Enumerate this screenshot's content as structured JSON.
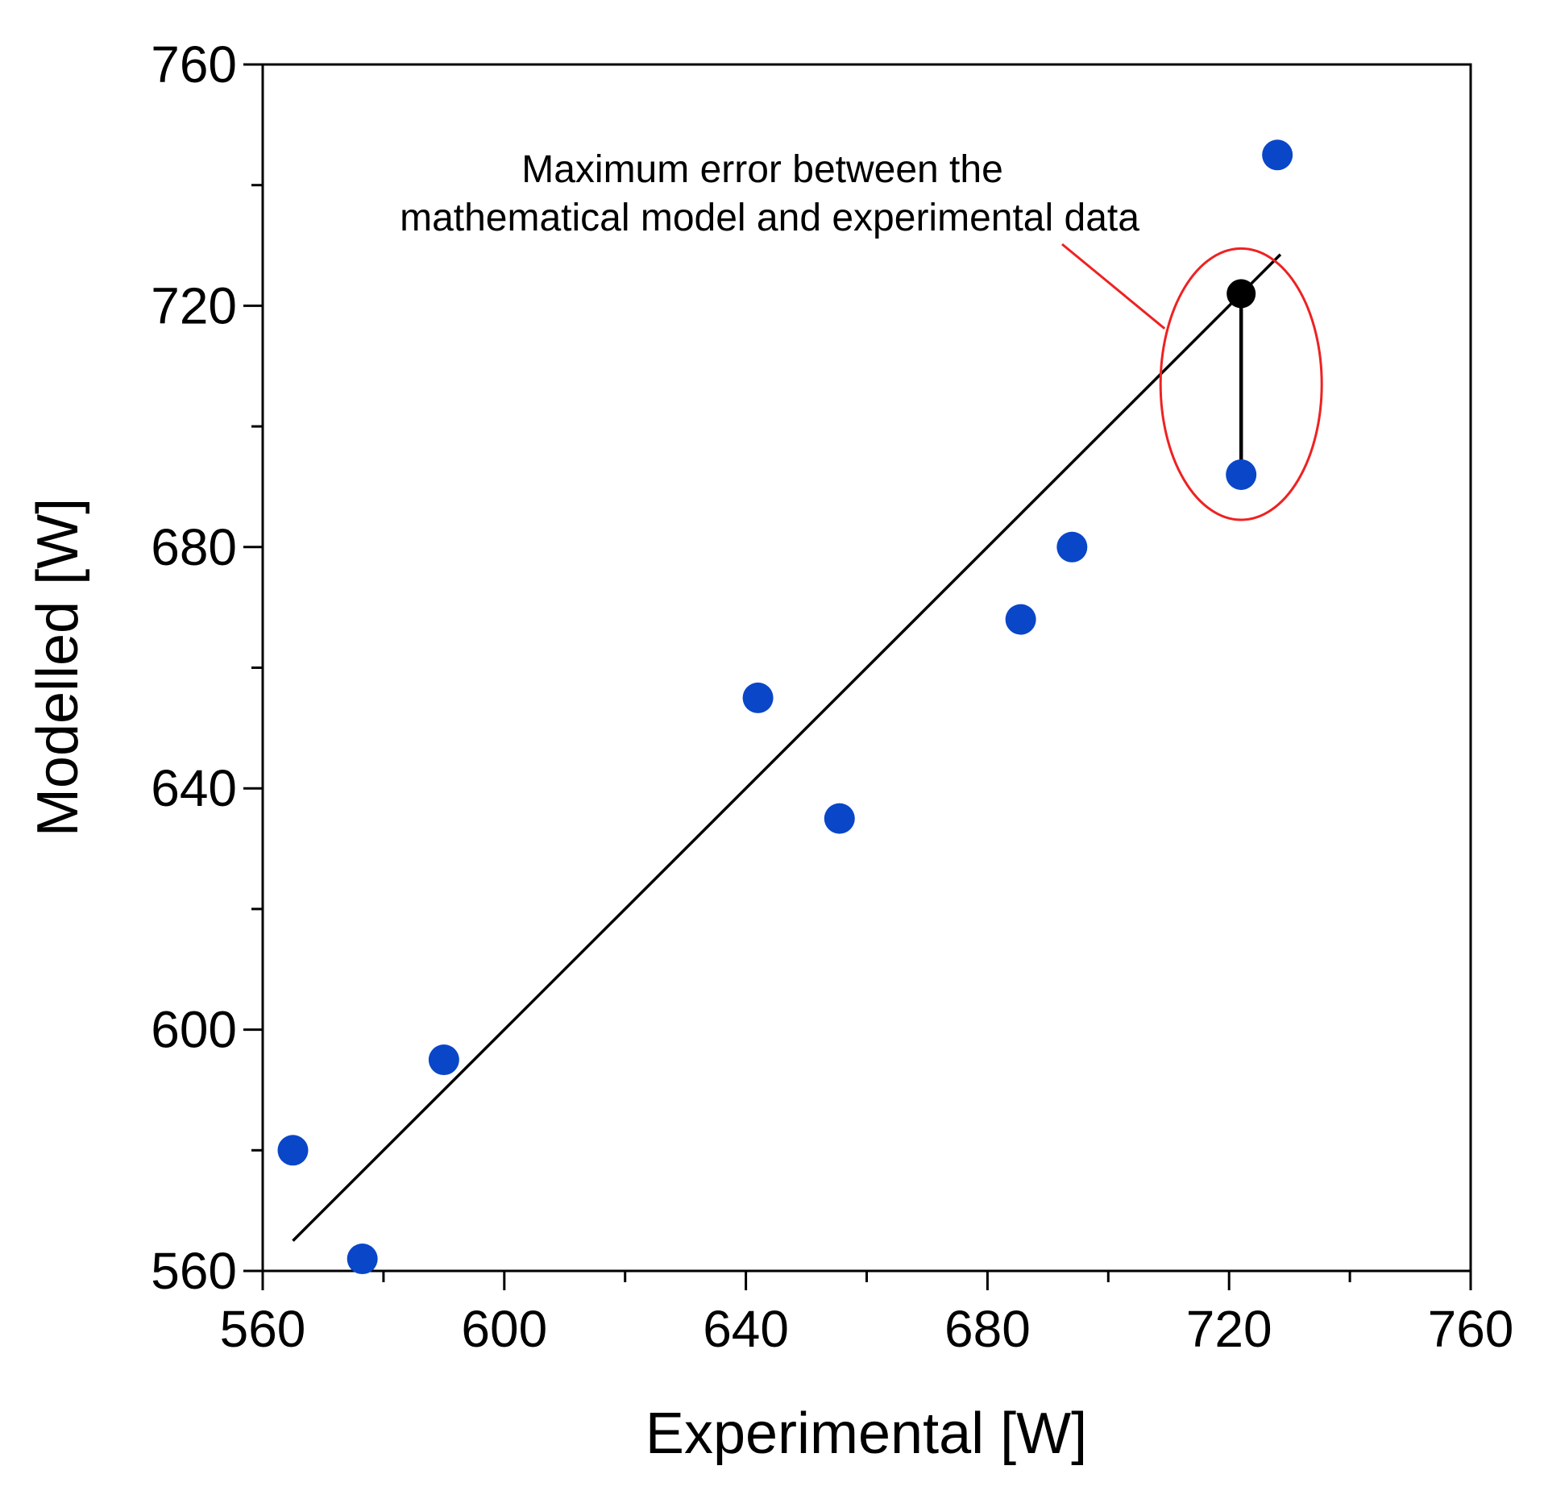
{
  "chart_data": {
    "type": "scatter",
    "title": "",
    "xlabel": "Experimental [W]",
    "ylabel": "Modelled [W]",
    "xlim": [
      560,
      760
    ],
    "ylim": [
      560,
      760
    ],
    "x_major_ticks": [
      560,
      600,
      640,
      680,
      720,
      760
    ],
    "y_major_ticks": [
      560,
      600,
      640,
      680,
      720,
      760
    ],
    "x_tick_labels": [
      "560",
      "600",
      "640",
      "680",
      "720",
      "760"
    ],
    "y_tick_labels": [
      "560",
      "600",
      "640",
      "680",
      "720",
      "760"
    ],
    "x_minor_step": 20,
    "y_minor_step": 20,
    "grid": false,
    "legend": null,
    "series": [
      {
        "color": "#0a46c8",
        "points": [
          {
            "x": 565,
            "y": 580
          },
          {
            "x": 576.5,
            "y": 562
          },
          {
            "x": 590,
            "y": 595
          },
          {
            "x": 642,
            "y": 655
          },
          {
            "x": 655.5,
            "y": 635
          },
          {
            "x": 685.5,
            "y": 668
          },
          {
            "x": 694,
            "y": 680
          },
          {
            "x": 722,
            "y": 692
          },
          {
            "x": 728,
            "y": 745
          }
        ]
      }
    ],
    "fit_line": {
      "color": "#000000",
      "from": {
        "x": 565,
        "y": 565
      },
      "to": {
        "x": 728.5,
        "y": 728.5
      }
    },
    "max_error": {
      "line_color": "#000000",
      "marker_color": "#000000",
      "from": {
        "x": 722,
        "y": 722
      },
      "to": {
        "x": 722,
        "y": 692
      },
      "ellipse_color": "#ee2222",
      "text_lines": [
        "Maximum error between the",
        "mathematical model and experimental data"
      ]
    }
  }
}
